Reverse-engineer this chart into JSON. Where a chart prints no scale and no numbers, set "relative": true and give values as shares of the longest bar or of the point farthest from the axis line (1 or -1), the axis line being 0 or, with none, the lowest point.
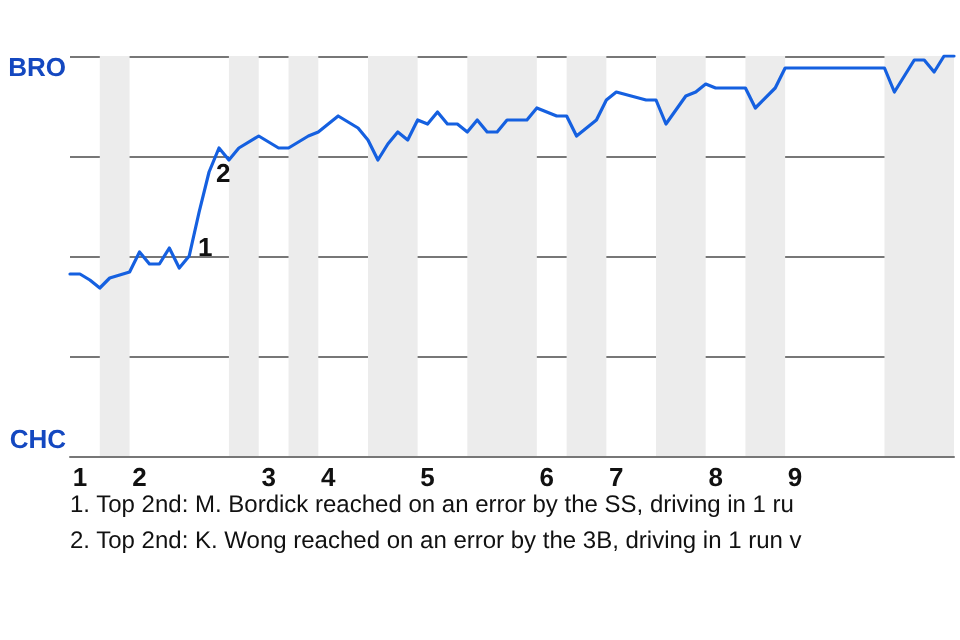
{
  "chart_data": {
    "type": "line",
    "relative": true,
    "categories": [
      null,
      "1",
      null,
      null,
      null,
      null,
      null,
      "2",
      null,
      null,
      null,
      null,
      null,
      null,
      null,
      null,
      null,
      null,
      null,
      null,
      "3",
      null,
      null,
      null,
      null,
      null,
      "4",
      null,
      null,
      null,
      null,
      null,
      null,
      null,
      null,
      null,
      "5",
      null,
      null,
      null,
      null,
      null,
      null,
      null,
      null,
      null,
      null,
      null,
      "6",
      null,
      null,
      null,
      null,
      null,
      null,
      "7",
      null,
      null,
      null,
      null,
      null,
      null,
      null,
      null,
      null,
      "8",
      null,
      null,
      null,
      null,
      null,
      null,
      null,
      "9",
      null,
      null,
      null,
      null,
      null,
      null,
      null,
      null,
      null,
      null,
      null,
      null,
      null,
      null,
      null,
      null
    ],
    "series": [
      {
        "color": "#1560e0",
        "values": [
          0.455,
          0.455,
          0.44,
          0.42,
          0.445,
          null,
          0.46,
          0.51,
          0.48,
          0.48,
          0.52,
          0.47,
          0.5,
          0.61,
          0.71,
          0.77,
          0.74,
          0.77,
          null,
          0.8,
          null,
          0.77,
          0.77,
          null,
          0.8,
          0.81,
          null,
          0.85,
          null,
          0.82,
          0.79,
          0.74,
          0.78,
          0.81,
          0.79,
          0.84,
          0.83,
          0.86,
          0.83,
          0.83,
          0.81,
          0.84,
          0.81,
          0.81,
          0.84,
          null,
          0.84,
          0.87,
          null,
          0.85,
          0.85,
          0.8,
          null,
          0.84,
          0.89,
          0.91,
          null,
          null,
          0.89,
          0.89,
          0.83,
          null,
          0.9,
          0.91,
          0.93,
          0.92,
          null,
          null,
          0.92,
          0.87,
          null,
          0.92,
          0.97,
          null,
          null,
          null,
          null,
          null,
          null,
          null,
          null,
          null,
          0.97,
          0.91,
          null,
          0.99,
          0.99,
          0.96,
          1.0,
          1.0
        ]
      }
    ],
    "grid": "y",
    "marker": "none",
    "line_style": "solid",
    "annotations": [
      "1",
      "2",
      "BRO",
      "CHC",
      "1. Top 2nd: M. Bordick reached on an error by the SS, driving in 1 ru",
      "2. Top 2nd: K. Wong reached on an error by the 3B, driving in 1 run v"
    ]
  }
}
